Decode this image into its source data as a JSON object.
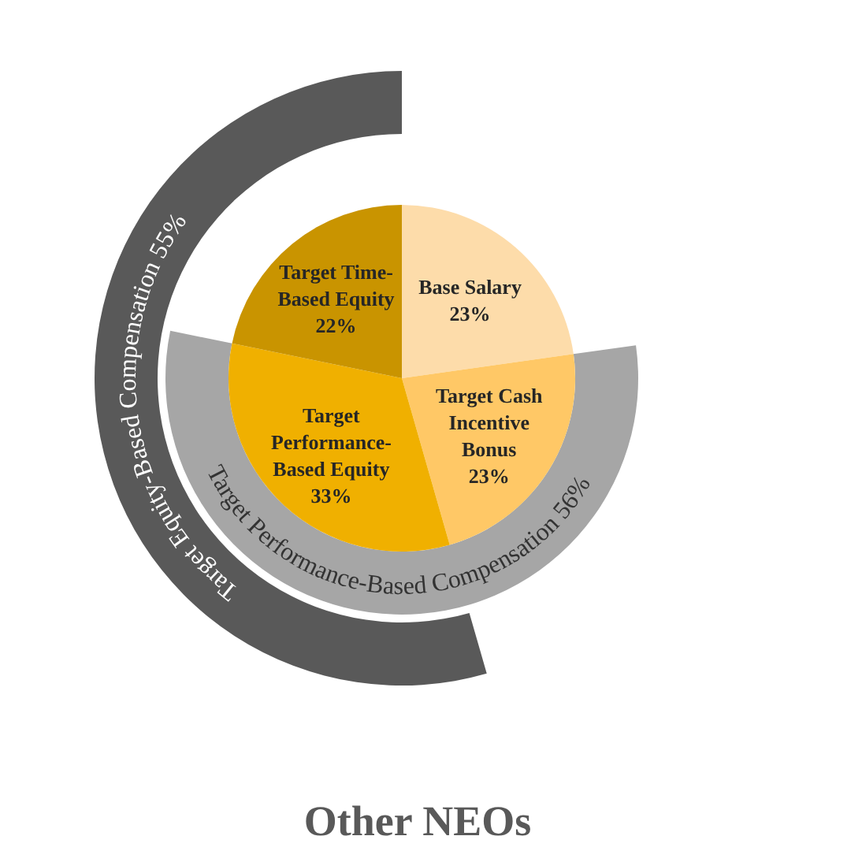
{
  "chart_data": {
    "type": "pie",
    "title": "Other NEOs",
    "categories": [
      "Base Salary",
      "Target Cash Incentive Bonus",
      "Target Performance-Based Equity",
      "Target Time-Based Equity"
    ],
    "values": [
      23,
      23,
      33,
      22
    ],
    "colors": [
      "#fddcaa",
      "#ffc866",
      "#f0b000",
      "#c99400"
    ],
    "value_labels": [
      "23%",
      "23%",
      "33%",
      "22%"
    ],
    "annotations": [
      "Target Equity-Based Compensation 55%",
      "Target Performance-Based Compensation 56%"
    ]
  }
}
